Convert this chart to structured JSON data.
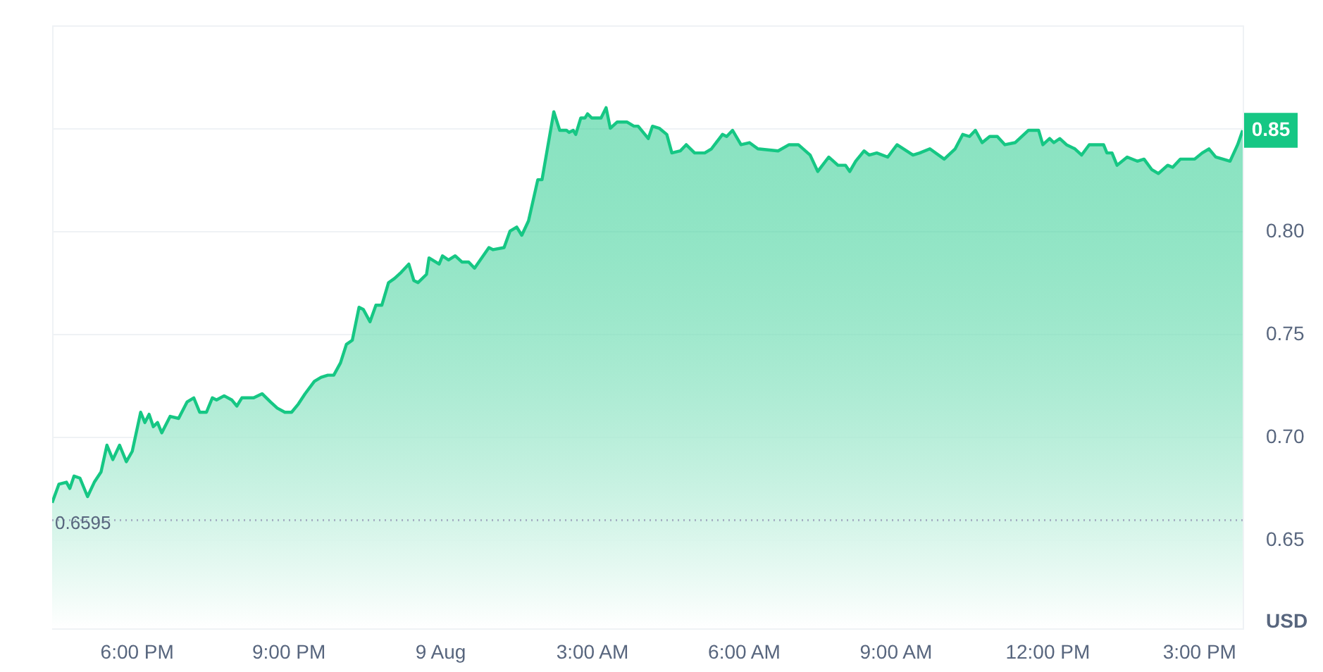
{
  "chart_data": {
    "type": "area",
    "ylabel": "USD",
    "color": "#16c784",
    "grid": "y",
    "line_style": "solid",
    "marker": "none",
    "xlim": [
      "--08-08T16:20",
      "--08-09T15:52"
    ],
    "ylim": [
      0.607,
      0.9
    ],
    "xticks": [
      {
        "value": "--08-08T18:00",
        "label": "6:00 PM"
      },
      {
        "value": "--08-08T21:00",
        "label": "9:00 PM"
      },
      {
        "value": "--08-09T00:00",
        "label": "9 Aug"
      },
      {
        "value": "--08-09T03:00",
        "label": "3:00 AM"
      },
      {
        "value": "--08-09T06:00",
        "label": "6:00 AM"
      },
      {
        "value": "--08-09T09:00",
        "label": "9:00 AM"
      },
      {
        "value": "--08-09T12:00",
        "label": "12:00 PM"
      },
      {
        "value": "--08-09T15:00",
        "label": "3:00 PM"
      }
    ],
    "yticks": [
      {
        "value": 0.65,
        "label": "0.65"
      },
      {
        "value": 0.7,
        "label": "0.70"
      },
      {
        "value": 0.75,
        "label": "0.75"
      },
      {
        "value": 0.8,
        "label": "0.80"
      },
      {
        "value": 0.85,
        "label": null
      }
    ],
    "ref_lines": [
      {
        "axis": "y",
        "value": 0.6595,
        "label": "0.6595",
        "color": "#a6b0c3",
        "line_style": "dotted"
      }
    ],
    "annotations": [
      {
        "text": "0.85",
        "x": "--08-09T15:52",
        "y": 0.849
      }
    ],
    "x": [
      "--08-08T16:20",
      "--08-08T16:28",
      "--08-08T16:37",
      "--08-08T16:41",
      "--08-08T16:46",
      "--08-08T16:53",
      "--08-08T17:02",
      "--08-08T17:10",
      "--08-08T17:18",
      "--08-08T17:25",
      "--08-08T17:32",
      "--08-08T17:40",
      "--08-08T17:48",
      "--08-08T17:55",
      "--08-08T18:05",
      "--08-08T18:10",
      "--08-08T18:15",
      "--08-08T18:20",
      "--08-08T18:25",
      "--08-08T18:30",
      "--08-08T18:40",
      "--08-08T18:50",
      "--08-08T19:00",
      "--08-08T19:08",
      "--08-08T19:15",
      "--08-08T19:23",
      "--08-08T19:30",
      "--08-08T19:35",
      "--08-08T19:44",
      "--08-08T19:53",
      "--08-08T19:59",
      "--08-08T20:05",
      "--08-08T20:19",
      "--08-08T20:29",
      "--08-08T20:39",
      "--08-08T20:47",
      "--08-08T20:56",
      "--08-08T21:04",
      "--08-08T21:12",
      "--08-08T21:20",
      "--08-08T21:31",
      "--08-08T21:39",
      "--08-08T21:47",
      "--08-08T21:54",
      "--08-08T22:02",
      "--08-08T22:09",
      "--08-08T22:16",
      "--08-08T22:24",
      "--08-08T22:29",
      "--08-08T22:37",
      "--08-08T22:44",
      "--08-08T22:51",
      "--08-08T22:59",
      "--08-08T23:06",
      "--08-08T23:14",
      "--08-08T23:23",
      "--08-08T23:29",
      "--08-08T23:34",
      "--08-08T23:44",
      "--08-08T23:47",
      "--08-08T23:59",
      "--08-09T00:03",
      "--08-09T00:10",
      "--08-09T00:18",
      "--08-09T00:26",
      "--08-09T00:34",
      "--08-09T00:41",
      "--08-09T00:58",
      "--08-09T01:03",
      "--08-09T01:16",
      "--08-09T01:23",
      "--08-09T01:31",
      "--08-09T01:37",
      "--08-09T01:45",
      "--08-09T01:56",
      "--08-09T02:01",
      "--08-09T02:15",
      "--08-09T02:22",
      "--08-09T02:30",
      "--08-09T02:33",
      "--08-09T02:38",
      "--08-09T02:41",
      "--08-09T02:47",
      "--08-09T02:52",
      "--08-09T02:55",
      "--08-09T03:00",
      "--08-09T03:11",
      "--08-09T03:17",
      "--08-09T03:22",
      "--08-09T03:30",
      "--08-09T03:42",
      "--08-09T03:50",
      "--08-09T03:55",
      "--08-09T04:07",
      "--08-09T04:12",
      "--08-09T04:20",
      "--08-09T04:29",
      "--08-09T04:35",
      "--08-09T04:45",
      "--08-09T04:52",
      "--08-09T05:02",
      "--08-09T05:14",
      "--08-09T05:22",
      "--08-09T05:35",
      "--08-09T05:40",
      "--08-09T05:47",
      "--08-09T05:57",
      "--08-09T06:07",
      "--08-09T06:17",
      "--08-09T06:41",
      "--08-09T06:54",
      "--08-09T07:05",
      "--08-09T07:19",
      "--08-09T07:28",
      "--08-09T07:41",
      "--08-09T07:52",
      "--08-09T08:01",
      "--08-09T08:06",
      "--08-09T08:13",
      "--08-09T08:23",
      "--08-09T08:29",
      "--08-09T08:38",
      "--08-09T08:51",
      "--08-09T09:02",
      "--08-09T09:21",
      "--08-09T09:29",
      "--08-09T09:41",
      "--08-09T09:58",
      "--08-09T10:11",
      "--08-09T10:20",
      "--08-09T10:28",
      "--08-09T10:35",
      "--08-09T10:43",
      "--08-09T10:52",
      "--08-09T11:01",
      "--08-09T11:10",
      "--08-09T11:22",
      "--08-09T11:38",
      "--08-09T11:45",
      "--08-09T11:50",
      "--08-09T11:55",
      "--08-09T12:03",
      "--08-09T12:08",
      "--08-09T12:15",
      "--08-09T12:23",
      "--08-09T12:33",
      "--08-09T12:41",
      "--08-09T12:50",
      "--08-09T13:07",
      "--08-09T13:11",
      "--08-09T13:17",
      "--08-09T13:23",
      "--08-09T13:35",
      "--08-09T13:47",
      "--08-09T13:55",
      "--08-09T14:04",
      "--08-09T14:12",
      "--08-09T14:23",
      "--08-09T14:29",
      "--08-09T14:38",
      "--08-09T14:55",
      "--08-09T15:04",
      "--08-09T15:12",
      "--08-09T15:20",
      "--08-09T15:37",
      "--08-09T15:46",
      "--08-09T15:52"
    ],
    "values": [
      0.668,
      0.677,
      0.678,
      0.675,
      0.681,
      0.68,
      0.671,
      0.678,
      0.683,
      0.696,
      0.689,
      0.696,
      0.688,
      0.693,
      0.712,
      0.707,
      0.711,
      0.705,
      0.707,
      0.702,
      0.71,
      0.709,
      0.717,
      0.719,
      0.712,
      0.712,
      0.719,
      0.718,
      0.72,
      0.718,
      0.715,
      0.719,
      0.719,
      0.721,
      0.717,
      0.714,
      0.712,
      0.712,
      0.716,
      0.721,
      0.727,
      0.729,
      0.73,
      0.73,
      0.736,
      0.745,
      0.747,
      0.763,
      0.762,
      0.756,
      0.764,
      0.764,
      0.775,
      0.777,
      0.78,
      0.784,
      0.776,
      0.775,
      0.779,
      0.787,
      0.784,
      0.788,
      0.786,
      0.788,
      0.785,
      0.785,
      0.782,
      0.792,
      0.791,
      0.792,
      0.8,
      0.802,
      0.798,
      0.805,
      0.825,
      0.825,
      0.858,
      0.849,
      0.849,
      0.848,
      0.849,
      0.847,
      0.855,
      0.855,
      0.857,
      0.855,
      0.855,
      0.86,
      0.85,
      0.853,
      0.853,
      0.851,
      0.851,
      0.845,
      0.851,
      0.85,
      0.847,
      0.838,
      0.839,
      0.842,
      0.838,
      0.838,
      0.84,
      0.847,
      0.846,
      0.849,
      0.842,
      0.843,
      0.84,
      0.839,
      0.842,
      0.842,
      0.837,
      0.829,
      0.836,
      0.832,
      0.832,
      0.829,
      0.834,
      0.839,
      0.837,
      0.838,
      0.836,
      0.842,
      0.837,
      0.838,
      0.84,
      0.835,
      0.84,
      0.847,
      0.846,
      0.849,
      0.843,
      0.846,
      0.846,
      0.842,
      0.843,
      0.849,
      0.849,
      0.849,
      0.842,
      0.845,
      0.843,
      0.845,
      0.842,
      0.84,
      0.837,
      0.842,
      0.842,
      0.838,
      0.838,
      0.832,
      0.836,
      0.834,
      0.835,
      0.83,
      0.828,
      0.832,
      0.831,
      0.835,
      0.835,
      0.838,
      0.84,
      0.836,
      0.834,
      0.842,
      0.849
    ]
  }
}
